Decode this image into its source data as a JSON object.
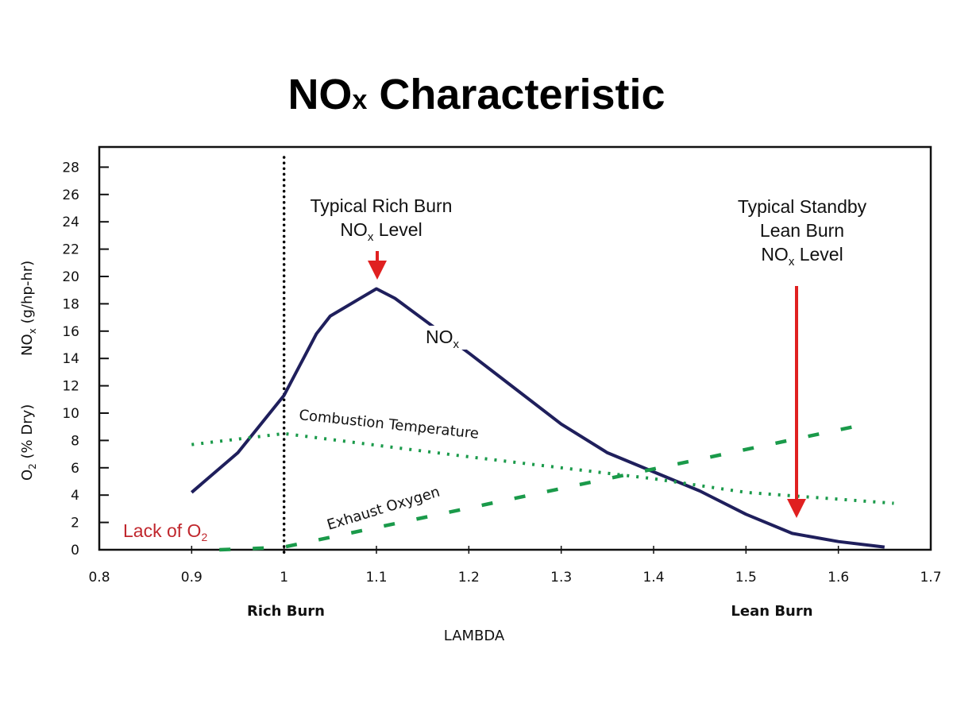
{
  "chart_data": {
    "type": "line",
    "title": {
      "main": "NO",
      "sub": "x",
      "rest": " Characteristic"
    },
    "xlabel": "LAMBDA",
    "ylabel": {
      "o2": "O",
      "o2_sub": "2",
      "o2_rest": " (% Dry)",
      "nox": "NO",
      "nox_sub": "x",
      "nox_rest": " (g/hp-hr)"
    },
    "xlim": [
      0.8,
      1.7
    ],
    "ylim": [
      0,
      28
    ],
    "x_ticks": [
      "0.8",
      "0.9",
      "1",
      "1.1",
      "1.2",
      "1.3",
      "1.4",
      "1.5",
      "1.6",
      "1.7"
    ],
    "y_ticks": [
      "0",
      "2",
      "4",
      "6",
      "8",
      "10",
      "12",
      "14",
      "16",
      "18",
      "20",
      "22",
      "24",
      "26",
      "28"
    ],
    "grid": false,
    "legend": "none",
    "series": [
      {
        "name": "NOx",
        "label": {
          "main": "NO",
          "sub": "x"
        },
        "style": "solid",
        "color": "#1f1f5c",
        "x": [
          0.9,
          0.95,
          1.0,
          1.035,
          1.05,
          1.08,
          1.1,
          1.12,
          1.2,
          1.3,
          1.35,
          1.45,
          1.5,
          1.55,
          1.6,
          1.65
        ],
        "y": [
          4.2,
          7.1,
          11.3,
          15.8,
          17.1,
          18.3,
          19.1,
          18.4,
          14.4,
          9.2,
          7.1,
          4.3,
          2.6,
          1.2,
          0.6,
          0.2
        ]
      },
      {
        "name": "Combustion Temperature",
        "style": "dotted",
        "color": "#1a9a4a",
        "x": [
          0.9,
          1.0,
          1.2,
          1.4,
          1.5,
          1.66
        ],
        "y": [
          7.7,
          8.5,
          6.8,
          5.2,
          4.2,
          3.4
        ]
      },
      {
        "name": "Exhaust Oxygen",
        "style": "dashed",
        "color": "#1a9a4a",
        "x": [
          0.93,
          0.97,
          1.0,
          1.63
        ],
        "y": [
          0,
          0.1,
          0.2,
          9.2
        ]
      }
    ],
    "vertical_line": {
      "x": 1.0,
      "style": "dotted",
      "color": "#000000"
    },
    "annotations": {
      "rich_burn_level": {
        "line1": "Typical Rich Burn",
        "line2_main": "NO",
        "line2_sub": "x",
        "line2_rest": " Level",
        "arrow_color": "#e02020"
      },
      "lean_burn_level": {
        "line1": "Typical Standby",
        "line2": "Lean Burn",
        "line3_main": "NO",
        "line3_sub": "x",
        "line3_rest": " Level",
        "arrow_color": "#e02020"
      },
      "lack_of_o2": {
        "main": "Lack of O",
        "sub": "2",
        "color": "#c0272d"
      },
      "rich_burn": "Rich Burn",
      "lean_burn": "Lean Burn"
    }
  }
}
